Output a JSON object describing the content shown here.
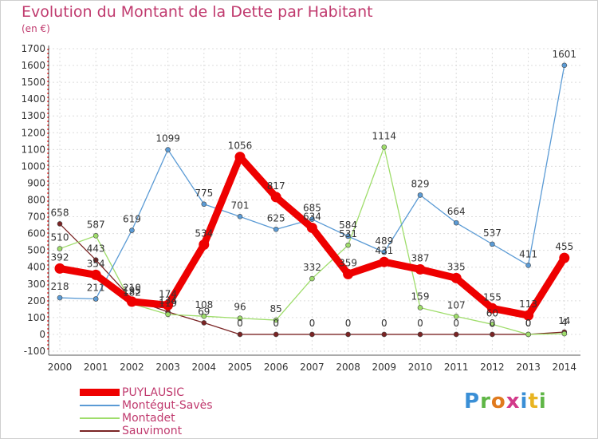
{
  "title": "Evolution du Montant de la Dette par Habitant",
  "unit": "(en €)",
  "brand": "Proxiti",
  "colors": {
    "title": "#c03a6e",
    "PUYLAUSIC": "#ee0000",
    "Montégut-Savès": "#5b9bd5",
    "Montadet": "#9fdd6b",
    "Sauvimont": "#7a2424"
  },
  "chart_data": {
    "type": "line",
    "title": "Evolution du Montant de la Dette par Habitant",
    "ylabel": "(en €)",
    "xlabel": "",
    "ylim": [
      -100,
      1700
    ],
    "yticks": [
      -100,
      0,
      100,
      200,
      300,
      400,
      500,
      600,
      700,
      800,
      900,
      1000,
      1100,
      1200,
      1300,
      1400,
      1500,
      1600,
      1700
    ],
    "categories": [
      "2000",
      "2001",
      "2002",
      "2003",
      "2004",
      "2005",
      "2006",
      "2007",
      "2008",
      "2009",
      "2010",
      "2011",
      "2012",
      "2013",
      "2014"
    ],
    "grid": true,
    "legend": "bottom-left",
    "series": [
      {
        "name": "PUYLAUSIC",
        "values": [
          392,
          354,
          195,
          174,
          534,
          1056,
          817,
          634,
          359,
          431,
          387,
          335,
          155,
          113,
          455
        ]
      },
      {
        "name": "Montégut-Savès",
        "values": [
          218,
          211,
          619,
          1099,
          775,
          701,
          625,
          685,
          584,
          489,
          829,
          664,
          537,
          411,
          1601
        ]
      },
      {
        "name": "Montadet",
        "values": [
          510,
          587,
          182,
          119,
          108,
          96,
          85,
          332,
          531,
          1114,
          159,
          107,
          60,
          0,
          4
        ]
      },
      {
        "name": "Sauvimont",
        "values": [
          658,
          443,
          210,
          134,
          69,
          0,
          0,
          0,
          0,
          0,
          0,
          0,
          0,
          0,
          14
        ]
      }
    ]
  }
}
